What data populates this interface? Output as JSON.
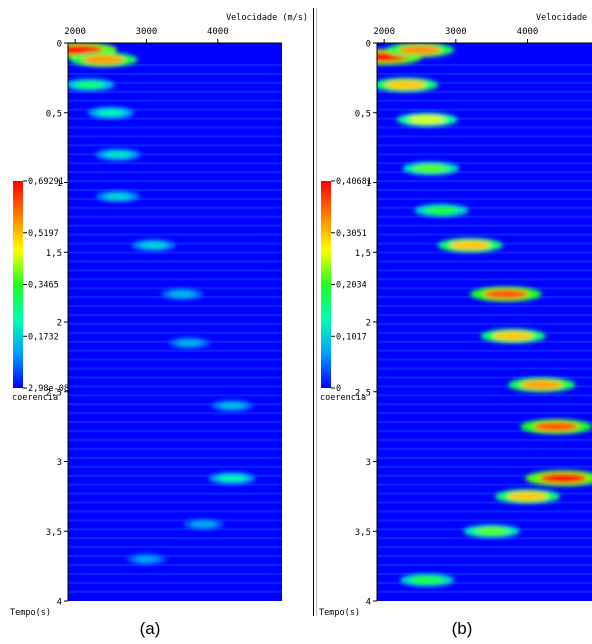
{
  "chart_data": [
    {
      "type": "heatmap",
      "panel_label": "(a)",
      "x_axis": {
        "label": "Velocidade (m/s)",
        "ticks": [
          2000,
          3000,
          4000
        ],
        "range": [
          1900,
          4900
        ]
      },
      "y_axis": {
        "label": "Tempo(s)",
        "ticks": [
          "0",
          "0,5",
          "1",
          "1,5",
          "2",
          "2,5",
          "3",
          "3,5",
          "4"
        ],
        "range": [
          0,
          4
        ]
      },
      "colorbar": {
        "label": "coerencia",
        "ticks": [
          "0,69291",
          "0,5197",
          "0,3465",
          "0,1732",
          "2,98e-08"
        ],
        "range": [
          2.98e-08,
          0.69291
        ],
        "colors": [
          "#0000ff",
          "#00a0ff",
          "#00ffb0",
          "#20ff20",
          "#ffff00",
          "#ff8000",
          "#ff0000"
        ]
      },
      "hotspots": [
        {
          "velocity": 2050,
          "time": 0.05,
          "value": 0.69
        },
        {
          "velocity": 2400,
          "time": 0.12,
          "value": 0.55
        },
        {
          "velocity": 2200,
          "time": 0.3,
          "value": 0.28
        },
        {
          "velocity": 2500,
          "time": 0.5,
          "value": 0.22
        },
        {
          "velocity": 2600,
          "time": 0.8,
          "value": 0.2
        },
        {
          "velocity": 2600,
          "time": 1.1,
          "value": 0.18
        },
        {
          "velocity": 3100,
          "time": 1.45,
          "value": 0.18
        },
        {
          "velocity": 3500,
          "time": 1.8,
          "value": 0.15
        },
        {
          "velocity": 3600,
          "time": 2.15,
          "value": 0.14
        },
        {
          "velocity": 4200,
          "time": 2.6,
          "value": 0.15
        },
        {
          "velocity": 4200,
          "time": 3.12,
          "value": 0.22
        },
        {
          "velocity": 3800,
          "time": 3.45,
          "value": 0.13
        },
        {
          "velocity": 3000,
          "time": 3.7,
          "value": 0.12
        }
      ]
    },
    {
      "type": "heatmap",
      "panel_label": "(b)",
      "x_axis": {
        "label": "Velocidade (m/s)",
        "ticks": [
          2000,
          3000,
          4000
        ],
        "range": [
          1900,
          4900
        ]
      },
      "y_axis": {
        "label": "Tempo(s)",
        "ticks": [
          "0",
          "0,5",
          "1",
          "1,5",
          "2",
          "2,5",
          "3",
          "3,5",
          "4"
        ],
        "range": [
          0,
          4
        ]
      },
      "colorbar": {
        "label": "coerencia",
        "ticks": [
          "0,40681",
          "0,3051",
          "0,2034",
          "0,1017",
          "0"
        ],
        "range": [
          0,
          0.40681
        ],
        "colors": [
          "#0000ff",
          "#00a0ff",
          "#00ffb0",
          "#20ff20",
          "#ffff00",
          "#ff8000",
          "#ff0000"
        ]
      },
      "hotspots": [
        {
          "velocity": 2000,
          "time": 0.1,
          "value": 0.4
        },
        {
          "velocity": 2500,
          "time": 0.05,
          "value": 0.33
        },
        {
          "velocity": 2300,
          "time": 0.3,
          "value": 0.3
        },
        {
          "velocity": 2600,
          "time": 0.55,
          "value": 0.26
        },
        {
          "velocity": 2650,
          "time": 0.9,
          "value": 0.22
        },
        {
          "velocity": 2800,
          "time": 1.2,
          "value": 0.2
        },
        {
          "velocity": 3200,
          "time": 1.45,
          "value": 0.3
        },
        {
          "velocity": 3700,
          "time": 1.8,
          "value": 0.36
        },
        {
          "velocity": 3800,
          "time": 2.1,
          "value": 0.3
        },
        {
          "velocity": 4200,
          "time": 2.45,
          "value": 0.32
        },
        {
          "velocity": 4400,
          "time": 2.75,
          "value": 0.36
        },
        {
          "velocity": 4500,
          "time": 3.12,
          "value": 0.4
        },
        {
          "velocity": 4000,
          "time": 3.25,
          "value": 0.3
        },
        {
          "velocity": 3500,
          "time": 3.5,
          "value": 0.22
        },
        {
          "velocity": 2600,
          "time": 3.85,
          "value": 0.2
        }
      ]
    }
  ]
}
